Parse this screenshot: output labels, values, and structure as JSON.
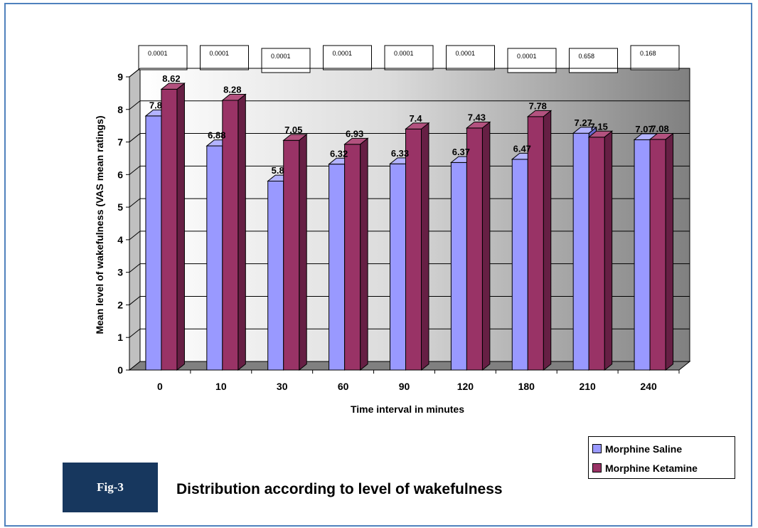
{
  "figure": {
    "label": "Fig-3",
    "caption": "Distribution according to level of wakefulness"
  },
  "colors": {
    "frame": "#4f81bd",
    "saline": "#9999ff",
    "ketamine": "#993366",
    "fig_label_bg": "#17375e"
  },
  "chart_data": {
    "type": "bar",
    "title": "",
    "xlabel": "Time interval in minutes",
    "ylabel": "Mean level of wakefulness (VAS mean ratings)",
    "ylim": [
      0,
      9
    ],
    "yticks": [
      "0",
      "1",
      "2",
      "3",
      "4",
      "5",
      "6",
      "7",
      "8",
      "9"
    ],
    "categories": [
      "0",
      "10",
      "30",
      "60",
      "90",
      "120",
      "180",
      "210",
      "240"
    ],
    "series": [
      {
        "name": "Morphine Saline",
        "values": [
          7.8,
          6.88,
          5.8,
          6.32,
          6.33,
          6.37,
          6.47,
          7.27,
          7.07
        ],
        "labels": [
          "7.8",
          "6.88",
          "5.8",
          "6.32",
          "6.33",
          "6.37",
          "6.47",
          "7.27",
          "7.07"
        ]
      },
      {
        "name": "Morphine Ketamine",
        "values": [
          8.62,
          8.28,
          7.05,
          6.93,
          7.4,
          7.43,
          7.78,
          7.15,
          7.08
        ],
        "labels": [
          "8.62",
          "8.28",
          "7.05",
          "6.93",
          "7.4",
          "7.43",
          "7.78",
          "7.15",
          "7.08"
        ]
      }
    ],
    "p_values": [
      "0.0001",
      "0.0001",
      "0.0001",
      "0.0001",
      "0.0001",
      "0.0001",
      "0.0001",
      "0.658",
      "0.168"
    ],
    "grid": true,
    "legend_position": "bottom-right"
  }
}
